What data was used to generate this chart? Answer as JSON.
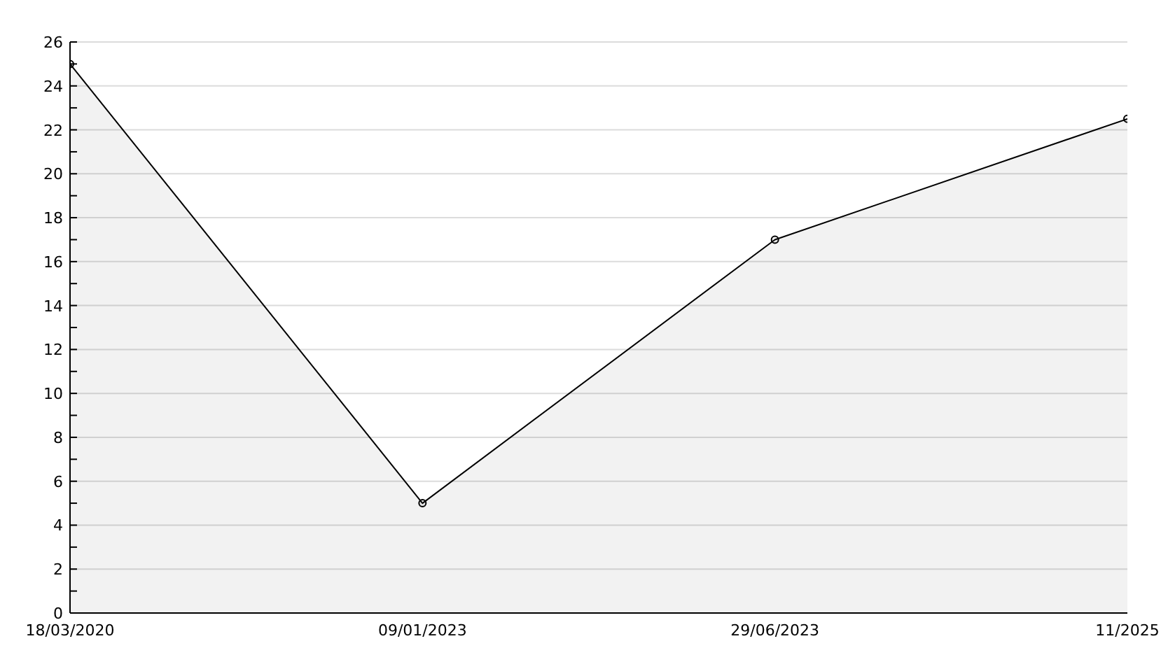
{
  "chart_data": {
    "type": "area",
    "categories": [
      "18/03/2020",
      "09/01/2023",
      "29/06/2023",
      "11/2025"
    ],
    "series": [
      {
        "color": "#000000",
        "values": [
          25,
          5,
          17,
          22.5
        ]
      }
    ],
    "ylim": [
      0,
      26
    ],
    "yticks": [
      0,
      {
        "value": 1,
        "label": null
      },
      2,
      {
        "value": 3,
        "label": null
      },
      4,
      {
        "value": 5,
        "label": null
      },
      6,
      {
        "value": 7,
        "label": null
      },
      8,
      {
        "value": 9,
        "label": null
      },
      10,
      {
        "value": 11,
        "label": null
      },
      12,
      {
        "value": 13,
        "label": null
      },
      14,
      {
        "value": 15,
        "label": null
      },
      16,
      {
        "value": 17,
        "label": null
      },
      18,
      {
        "value": 19,
        "label": null
      },
      20,
      {
        "value": 21,
        "label": null
      },
      22,
      {
        "value": 23,
        "label": null
      },
      24,
      {
        "value": 25,
        "label": null
      },
      26
    ],
    "grid": "y",
    "marker": "circle"
  }
}
